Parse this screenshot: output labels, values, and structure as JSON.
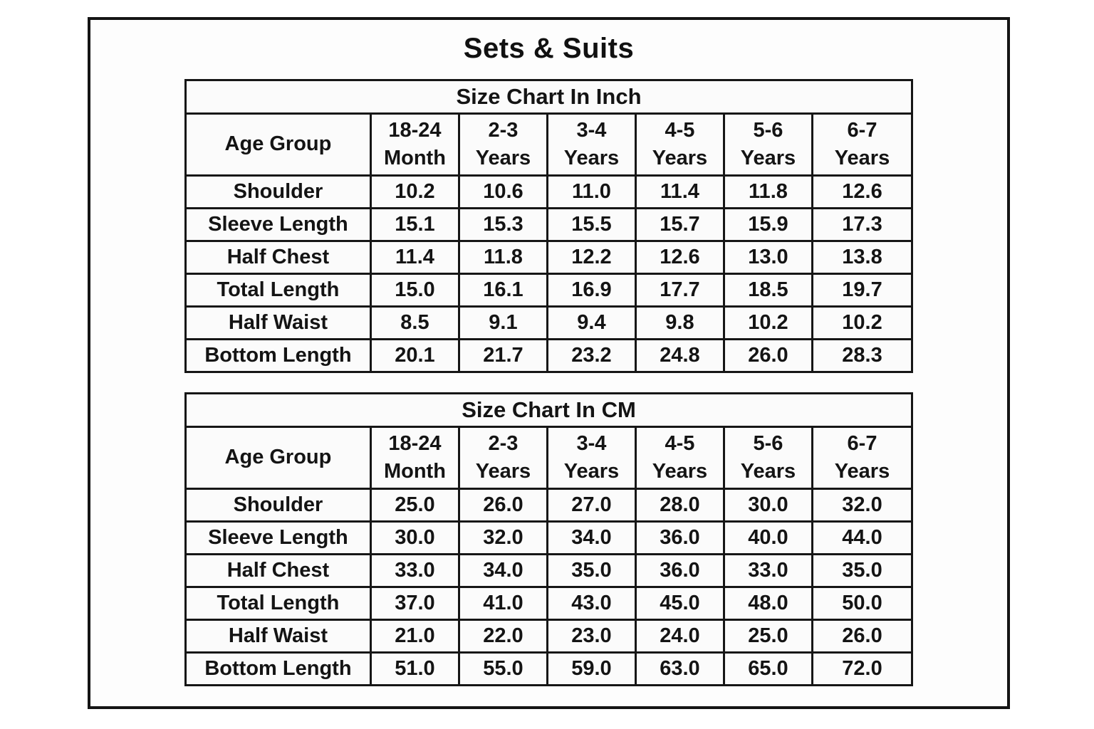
{
  "page_title": "Sets & Suits",
  "colors": {
    "text": "#111111",
    "border": "#161616",
    "cell_background": "#fbfbfb",
    "page_background": "#ffffff"
  },
  "chart_data": [
    {
      "type": "table",
      "title": "Size Chart In Inch",
      "corner_label": "Age Group",
      "unit": "inch",
      "columns": [
        {
          "line1": "18-24",
          "line2": "Month"
        },
        {
          "line1": "2-3",
          "line2": "Years"
        },
        {
          "line1": "3-4",
          "line2": "Years"
        },
        {
          "line1": "4-5",
          "line2": "Years"
        },
        {
          "line1": "5-6",
          "line2": "Years"
        },
        {
          "line1": "6-7",
          "line2": "Years"
        }
      ],
      "rows": [
        {
          "label": "Shoulder",
          "values": [
            "10.2",
            "10.6",
            "11.0",
            "11.4",
            "11.8",
            "12.6"
          ]
        },
        {
          "label": "Sleeve Length",
          "values": [
            "15.1",
            "15.3",
            "15.5",
            "15.7",
            "15.9",
            "17.3"
          ]
        },
        {
          "label": "Half Chest",
          "values": [
            "11.4",
            "11.8",
            "12.2",
            "12.6",
            "13.0",
            "13.8"
          ]
        },
        {
          "label": "Total Length",
          "values": [
            "15.0",
            "16.1",
            "16.9",
            "17.7",
            "18.5",
            "19.7"
          ]
        },
        {
          "label": "Half Waist",
          "values": [
            "8.5",
            "9.1",
            "9.4",
            "9.8",
            "10.2",
            "10.2"
          ]
        },
        {
          "label": "Bottom Length",
          "values": [
            "20.1",
            "21.7",
            "23.2",
            "24.8",
            "26.0",
            "28.3"
          ]
        }
      ]
    },
    {
      "type": "table",
      "title": "Size Chart In CM",
      "corner_label": "Age Group",
      "unit": "cm",
      "columns": [
        {
          "line1": "18-24",
          "line2": "Month"
        },
        {
          "line1": "2-3",
          "line2": "Years"
        },
        {
          "line1": "3-4",
          "line2": "Years"
        },
        {
          "line1": "4-5",
          "line2": "Years"
        },
        {
          "line1": "5-6",
          "line2": "Years"
        },
        {
          "line1": "6-7",
          "line2": "Years"
        }
      ],
      "rows": [
        {
          "label": "Shoulder",
          "values": [
            "25.0",
            "26.0",
            "27.0",
            "28.0",
            "30.0",
            "32.0"
          ]
        },
        {
          "label": "Sleeve Length",
          "values": [
            "30.0",
            "32.0",
            "34.0",
            "36.0",
            "40.0",
            "44.0"
          ]
        },
        {
          "label": "Half Chest",
          "values": [
            "33.0",
            "34.0",
            "35.0",
            "36.0",
            "33.0",
            "35.0"
          ]
        },
        {
          "label": "Total Length",
          "values": [
            "37.0",
            "41.0",
            "43.0",
            "45.0",
            "48.0",
            "50.0"
          ]
        },
        {
          "label": "Half Waist",
          "values": [
            "21.0",
            "22.0",
            "23.0",
            "24.0",
            "25.0",
            "26.0"
          ]
        },
        {
          "label": "Bottom Length",
          "values": [
            "51.0",
            "55.0",
            "59.0",
            "63.0",
            "65.0",
            "72.0"
          ]
        }
      ]
    }
  ]
}
